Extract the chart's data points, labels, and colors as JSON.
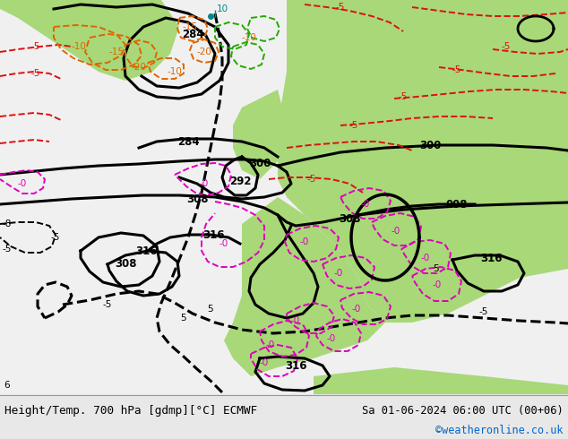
{
  "title_left": "Height/Temp. 700 hPa [gdmp][°C] ECMWF",
  "title_right": "Sa 01-06-2024 06:00 UTC (00+06)",
  "credit": "©weatheronline.co.uk",
  "credit_color": "#0066cc",
  "bg_color": "#f0f0f0",
  "figsize": [
    6.34,
    4.9
  ],
  "dpi": 100,
  "footer_bg": "#e8e8e8",
  "map_bg_gray": "#cccccc",
  "map_bg_green": "#a8d878",
  "map_bg_green_light": "#b8e090",
  "bk": "#000000",
  "rc": "#dd1111",
  "mc": "#dd00bb",
  "oc": "#dd6600",
  "gc": "#22aa00",
  "tc": "#008888",
  "title_fontsize": 9.2,
  "credit_fontsize": 8.5,
  "lbl_fs": 7.5
}
